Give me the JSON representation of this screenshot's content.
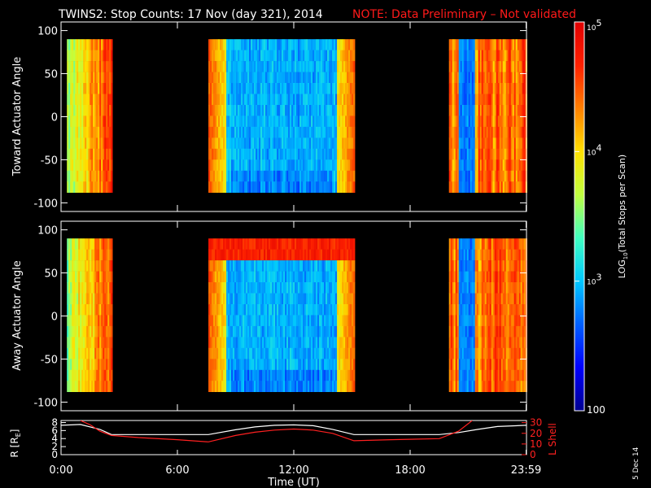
{
  "title": "TWINS2: Stop Counts: 17 Nov (day 321), 2014",
  "note": "NOTE: Data Preliminary – Not validated",
  "side_date": "5 Dec 14",
  "colors": {
    "note": "#ff1a1a",
    "text": "#ffffff",
    "r_line": "#ffffff",
    "lshell_line": "#ff2020",
    "background": "#000000"
  },
  "chart_data": [
    {
      "type": "heatmap",
      "panel": "toward",
      "ylabel": "Toward Actuator Angle",
      "ylim": [
        -110,
        110
      ],
      "yticks": [
        100,
        50,
        0,
        -50,
        -100
      ],
      "y_data_range": [
        -88,
        90
      ],
      "xlim": [
        0,
        24
      ],
      "xticks": [
        "0:00",
        "6:00",
        "12:00",
        "18:00",
        "23:59"
      ],
      "xtick_hours": [
        0,
        6,
        12,
        18,
        23.98
      ],
      "data_segments_hours": [
        [
          0.3,
          2.6
        ],
        [
          7.6,
          15.1
        ],
        [
          20.0,
          23.98
        ]
      ]
    },
    {
      "type": "heatmap",
      "panel": "away",
      "ylabel": "Away Actuator Angle",
      "ylim": [
        -110,
        110
      ],
      "yticks": [
        100,
        50,
        0,
        -50,
        -100
      ],
      "y_data_range": [
        -88,
        90
      ],
      "xlim": [
        0,
        24
      ],
      "xticks": [
        "0:00",
        "6:00",
        "12:00",
        "18:00",
        "23:59"
      ],
      "xtick_hours": [
        0,
        6,
        12,
        18,
        23.98
      ],
      "data_segments_hours": [
        [
          0.3,
          2.6
        ],
        [
          7.6,
          15.1
        ],
        [
          20.0,
          23.98
        ]
      ]
    },
    {
      "type": "line",
      "panel": "orbit",
      "xlabel": "Time (UT)",
      "xticks": [
        "0:00",
        "6:00",
        "12:00",
        "18:00",
        "23:59"
      ],
      "xtick_hours": [
        0,
        6,
        12,
        18,
        23.98
      ],
      "xlim": [
        0,
        24
      ],
      "left_axis": {
        "label": "R [R_E]",
        "label_main": "R [R",
        "label_sub": "E",
        "ticks": [
          8,
          6,
          4,
          2,
          0
        ],
        "ylim": [
          0,
          8.5
        ]
      },
      "right_axis": {
        "label": "L Shell",
        "ticks": [
          30,
          20,
          10,
          0
        ],
        "ylim": [
          0,
          32
        ]
      },
      "series": [
        {
          "axis": "left",
          "x": [
            0,
            1,
            2,
            2.6,
            4,
            6,
            7.6,
            9,
            10,
            11,
            12,
            13,
            14,
            15.1,
            17,
            19.5,
            20.5,
            21.5,
            22.5,
            23.98
          ],
          "y": [
            7.3,
            7.5,
            6.3,
            5.0,
            5.0,
            5.0,
            5.0,
            6.2,
            6.9,
            7.3,
            7.4,
            7.2,
            6.3,
            5.0,
            5.0,
            5.0,
            5.5,
            6.3,
            7.0,
            7.3
          ]
        },
        {
          "axis": "right",
          "x": [
            1.0,
            1.5,
            2.0,
            2.6,
            4,
            6,
            7.6,
            9,
            10,
            11,
            12,
            13,
            14,
            15.1,
            17,
            19.5,
            20.5,
            21.2
          ],
          "y": [
            32,
            28,
            22,
            18,
            16,
            14,
            12,
            18,
            21,
            23,
            24,
            23,
            20,
            13,
            14,
            15,
            22,
            32
          ]
        }
      ]
    },
    {
      "type": "colorbar",
      "label": "LOG10(Total Stops per Scan)",
      "label_main": "LOG",
      "label_sub": "10",
      "label_rest": "(Total Stops per Scan)",
      "scale": "log",
      "range": [
        100,
        100000
      ],
      "tick_labels": [
        {
          "base": "10",
          "exp": "5",
          "value": 100000
        },
        {
          "base": "10",
          "exp": "4",
          "value": 10000
        },
        {
          "base": "10",
          "exp": "3",
          "value": 1000
        },
        {
          "base": "100",
          "exp": "",
          "value": 100
        }
      ],
      "colormap": [
        "#000090",
        "#0000ff",
        "#0060ff",
        "#00c8ff",
        "#40ffc0",
        "#c0ff40",
        "#ffe000",
        "#ff8000",
        "#ff2000",
        "#e00000"
      ]
    }
  ]
}
